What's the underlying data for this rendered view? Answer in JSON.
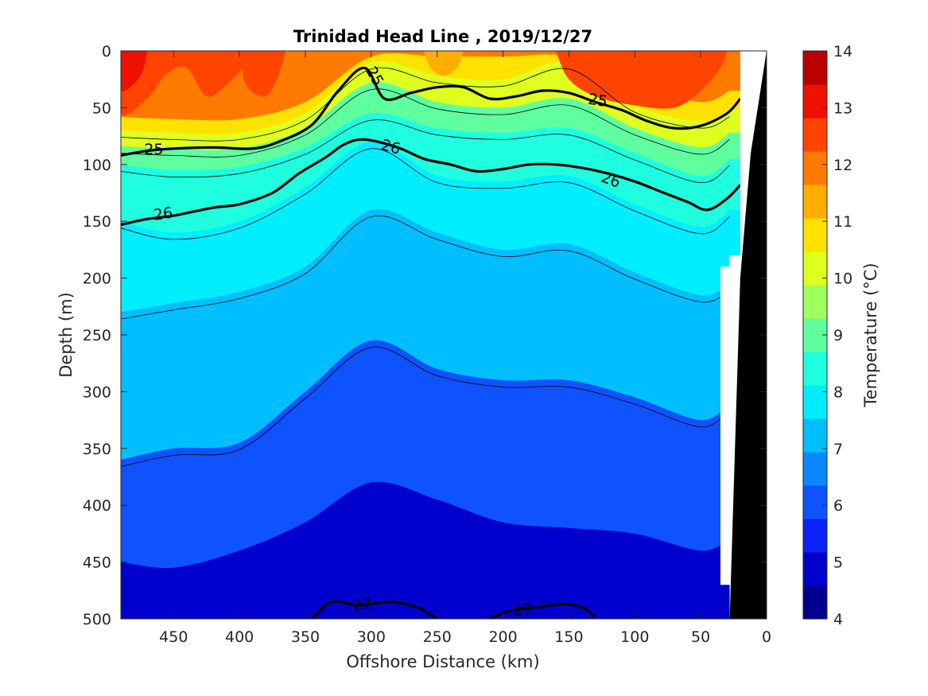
{
  "chart_data": {
    "type": "heatmap",
    "subtype": "filled-contour-section",
    "title": "Trinidad Head Line , 2019/12/27",
    "xlabel": "Offshore Distance (km)",
    "ylabel": "Depth (m)",
    "xlim": [
      490,
      0
    ],
    "ylim": [
      0,
      500
    ],
    "x_reversed": true,
    "y_reversed": true,
    "xticks": [
      450,
      400,
      350,
      300,
      250,
      200,
      150,
      100,
      50,
      0
    ],
    "yticks": [
      0,
      50,
      100,
      150,
      200,
      250,
      300,
      350,
      400,
      450,
      500
    ],
    "colorbar": {
      "label": "Temperature (°C)",
      "range": [
        4,
        14
      ],
      "ticks": [
        4,
        5,
        6,
        7,
        8,
        9,
        10,
        11,
        12,
        13,
        14
      ],
      "colors": [
        "#00008F",
        "#0000CC",
        "#0A22F5",
        "#0F52FF",
        "#0B88FF",
        "#00BEFF",
        "#00EEFF",
        "#1FFFE0",
        "#5FFF9F",
        "#9FFF5F",
        "#DFFF1F",
        "#FFE200",
        "#FFAE00",
        "#FF7A00",
        "#FF4400",
        "#EE1100",
        "#BB0000"
      ]
    },
    "sections": [
      {
        "x": 490,
        "isotherm_depths": {
          "12": 58,
          "11": 70,
          "10": 84,
          "9": 100,
          "8": 150,
          "7": 230,
          "6": 360,
          "5": 450
        }
      },
      {
        "x": 450,
        "isotherm_depths": {
          "12": 60,
          "11": 72,
          "10": 86,
          "9": 105,
          "8": 160,
          "7": 222,
          "6": 350,
          "5": 455
        }
      },
      {
        "x": 400,
        "isotherm_depths": {
          "12": 60,
          "11": 72,
          "10": 86,
          "9": 102,
          "8": 150,
          "7": 212,
          "6": 345,
          "5": 440
        }
      },
      {
        "x": 350,
        "isotherm_depths": {
          "12": 45,
          "11": 55,
          "10": 68,
          "9": 85,
          "8": 120,
          "7": 190,
          "6": 300,
          "5": 415
        }
      },
      {
        "x": 300,
        "isotherm_depths": {
          "12": 5,
          "11": 10,
          "10": 28,
          "9": 55,
          "8": 80,
          "7": 140,
          "6": 255,
          "5": 380
        }
      },
      {
        "x": 250,
        "isotherm_depths": {
          "12": 5,
          "11": 22,
          "10": 45,
          "9": 68,
          "8": 110,
          "7": 160,
          "6": 280,
          "5": 395
        }
      },
      {
        "x": 200,
        "isotherm_depths": {
          "12": 5,
          "11": 25,
          "10": 50,
          "9": 72,
          "8": 115,
          "7": 175,
          "6": 290,
          "5": 415
        }
      },
      {
        "x": 150,
        "isotherm_depths": {
          "12": 5,
          "11": 10,
          "10": 42,
          "9": 68,
          "8": 110,
          "7": 170,
          "6": 290,
          "5": 420
        }
      },
      {
        "x": 100,
        "isotherm_depths": {
          "12": 30,
          "11": 48,
          "10": 68,
          "9": 90,
          "8": 135,
          "7": 195,
          "6": 305,
          "5": 425
        }
      },
      {
        "x": 50,
        "isotherm_depths": {
          "12": 45,
          "11": 62,
          "10": 85,
          "9": 110,
          "8": 155,
          "7": 215,
          "6": 325,
          "5": 440
        }
      },
      {
        "x": 28,
        "isotherm_depths": {
          "12": 35,
          "11": 52,
          "10": 72,
          "9": 95,
          "8": 140,
          "7": 205,
          "6": 310,
          "5": 430
        }
      }
    ],
    "contour_lines": [
      {
        "label": "25",
        "level": 25,
        "bold": true,
        "points": [
          [
            490,
            92
          ],
          [
            470,
            88
          ],
          [
            450,
            86
          ],
          [
            420,
            85
          ],
          [
            390,
            86
          ],
          [
            370,
            80
          ],
          [
            345,
            65
          ],
          [
            325,
            35
          ],
          [
            305,
            15
          ],
          [
            290,
            42
          ],
          [
            270,
            37
          ],
          [
            250,
            32
          ],
          [
            230,
            32
          ],
          [
            210,
            42
          ],
          [
            190,
            40
          ],
          [
            170,
            35
          ],
          [
            150,
            37
          ],
          [
            130,
            45
          ],
          [
            110,
            52
          ],
          [
            90,
            62
          ],
          [
            70,
            68
          ],
          [
            50,
            66
          ],
          [
            30,
            55
          ],
          [
            20,
            42
          ]
        ]
      },
      {
        "label": "26",
        "level": 26,
        "bold": true,
        "points": [
          [
            490,
            153
          ],
          [
            470,
            148
          ],
          [
            450,
            145
          ],
          [
            420,
            138
          ],
          [
            400,
            135
          ],
          [
            375,
            125
          ],
          [
            355,
            108
          ],
          [
            335,
            94
          ],
          [
            320,
            82
          ],
          [
            305,
            78
          ],
          [
            280,
            85
          ],
          [
            260,
            95
          ],
          [
            240,
            100
          ],
          [
            220,
            106
          ],
          [
            200,
            104
          ],
          [
            180,
            100
          ],
          [
            160,
            100
          ],
          [
            140,
            103
          ],
          [
            120,
            108
          ],
          [
            100,
            115
          ],
          [
            80,
            124
          ],
          [
            60,
            133
          ],
          [
            45,
            140
          ],
          [
            30,
            130
          ],
          [
            20,
            118
          ]
        ]
      },
      {
        "label": "27",
        "level": 27,
        "bold": true,
        "points": [
          [
            345,
            500
          ],
          [
            330,
            485
          ],
          [
            310,
            488
          ],
          [
            285,
            485
          ],
          [
            265,
            490
          ],
          [
            250,
            500
          ]
        ]
      },
      {
        "label": "27",
        "level": 27,
        "bold": true,
        "points": [
          [
            210,
            500
          ],
          [
            195,
            493
          ],
          [
            175,
            490
          ],
          [
            155,
            487
          ],
          [
            140,
            490
          ],
          [
            130,
            498
          ]
        ]
      }
    ]
  }
}
